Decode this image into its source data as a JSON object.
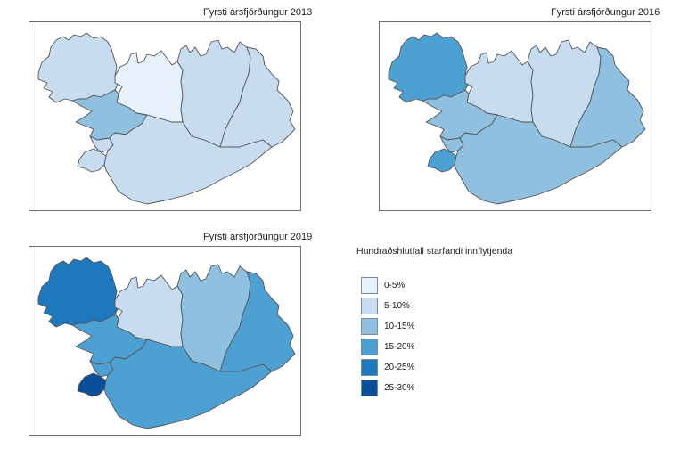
{
  "maps": [
    {
      "title": "Fyrsti ársfjórðungur 2013",
      "classes": {
        "westfjords": "5-10%",
        "northwest": "0-5%",
        "northeast": "5-10%",
        "east": "5-10%",
        "west": "10-15%",
        "capital": "5-10%",
        "southwest": "5-10%",
        "south": "5-10%"
      }
    },
    {
      "title": "Fyrsti ársfjórðungur 2016",
      "classes": {
        "westfjords": "15-20%",
        "northwest": "5-10%",
        "northeast": "5-10%",
        "east": "10-15%",
        "west": "10-15%",
        "capital": "10-15%",
        "southwest": "15-20%",
        "south": "10-15%"
      }
    },
    {
      "title": "Fyrsti ársfjórðungur 2019",
      "classes": {
        "westfjords": "20-25%",
        "northwest": "5-10%",
        "northeast": "10-15%",
        "east": "15-20%",
        "west": "15-20%",
        "capital": "15-20%",
        "southwest": "25-30%",
        "south": "15-20%"
      }
    }
  ],
  "legend": {
    "title": "Hundraðshlutfall starfandi innflytjenda",
    "items": [
      {
        "label": "0-5%",
        "color": "#e7f1fb"
      },
      {
        "label": "5-10%",
        "color": "#c7dcef"
      },
      {
        "label": "10-15%",
        "color": "#8fc0df"
      },
      {
        "label": "15-20%",
        "color": "#4da0d2"
      },
      {
        "label": "20-25%",
        "color": "#1d78bd"
      },
      {
        "label": "25-30%",
        "color": "#0a4f9c"
      }
    ]
  }
}
